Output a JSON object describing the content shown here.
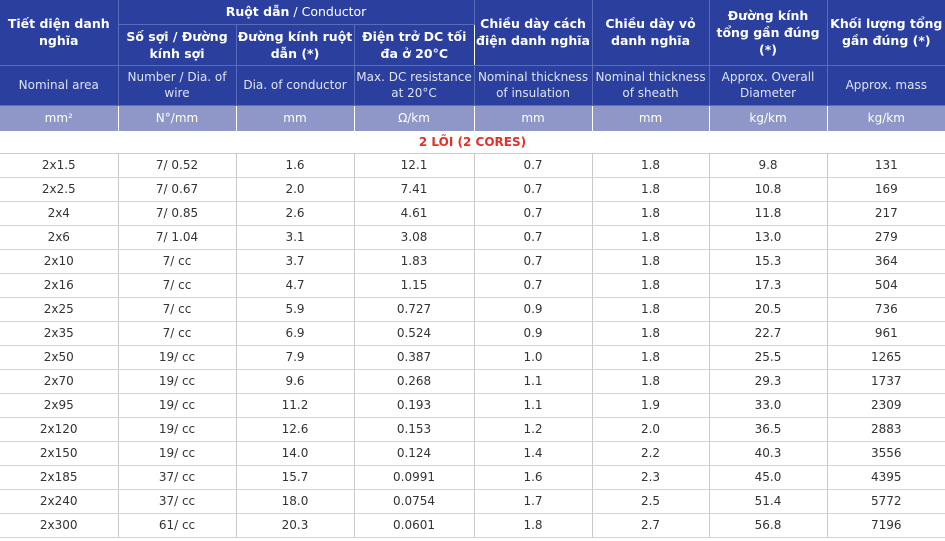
{
  "header": {
    "col1_vi": "Tiết diện danh nghĩa",
    "col1_en": "Nominal area",
    "conductor_group_vi": "Ruột dẫn",
    "conductor_group_sep": " / ",
    "conductor_group_en": "Conductor",
    "col2_vi": "Số sợi / Đường kính sợi",
    "col2_en": "Number / Dia. of wire",
    "col3_vi": "Đường kính ruột dẫn (*)",
    "col3_en": "Dia. of conductor",
    "col4_vi": "Điện trở DC tối đa ở 20°C",
    "col4_en": "Max. DC resistance at 20°C",
    "col5_vi": "Chiều dày cách điện danh nghĩa",
    "col5_en": "Nominal thickness of insulation",
    "col6_vi": "Chiều dày vỏ danh nghĩa",
    "col6_en": "Nominal thickness of sheath",
    "col7_vi": "Đường kính tổng gần đúng (*)",
    "col7_en": "Approx. Overall Diameter",
    "col8_vi": "Khối lượng tổng gần đúng (*)",
    "col8_en": "Approx. mass"
  },
  "units": [
    "mm²",
    "N°/mm",
    "mm",
    "Ω/km",
    "mm",
    "mm",
    "kg/km",
    "kg/km"
  ],
  "section_title": "2 LÕI (2 CORES)",
  "rows": [
    [
      "2x1.5",
      "7/ 0.52",
      "1.6",
      "12.1",
      "0.7",
      "1.8",
      "9.8",
      "131"
    ],
    [
      "2x2.5",
      "7/ 0.67",
      "2.0",
      "7.41",
      "0.7",
      "1.8",
      "10.8",
      "169"
    ],
    [
      "2x4",
      "7/ 0.85",
      "2.6",
      "4.61",
      "0.7",
      "1.8",
      "11.8",
      "217"
    ],
    [
      "2x6",
      "7/ 1.04",
      "3.1",
      "3.08",
      "0.7",
      "1.8",
      "13.0",
      "279"
    ],
    [
      "2x10",
      "7/ cc",
      "3.7",
      "1.83",
      "0.7",
      "1.8",
      "15.3",
      "364"
    ],
    [
      "2x16",
      "7/ cc",
      "4.7",
      "1.15",
      "0.7",
      "1.8",
      "17.3",
      "504"
    ],
    [
      "2x25",
      "7/ cc",
      "5.9",
      "0.727",
      "0.9",
      "1.8",
      "20.5",
      "736"
    ],
    [
      "2x35",
      "7/ cc",
      "6.9",
      "0.524",
      "0.9",
      "1.8",
      "22.7",
      "961"
    ],
    [
      "2x50",
      "19/ cc",
      "7.9",
      "0.387",
      "1.0",
      "1.8",
      "25.5",
      "1265"
    ],
    [
      "2x70",
      "19/ cc",
      "9.6",
      "0.268",
      "1.1",
      "1.8",
      "29.3",
      "1737"
    ],
    [
      "2x95",
      "19/ cc",
      "11.2",
      "0.193",
      "1.1",
      "1.9",
      "33.0",
      "2309"
    ],
    [
      "2x120",
      "19/ cc",
      "12.6",
      "0.153",
      "1.2",
      "2.0",
      "36.5",
      "2883"
    ],
    [
      "2x150",
      "19/ cc",
      "14.0",
      "0.124",
      "1.4",
      "2.2",
      "40.3",
      "3556"
    ],
    [
      "2x185",
      "37/ cc",
      "15.7",
      "0.0991",
      "1.6",
      "2.3",
      "45.0",
      "4395"
    ],
    [
      "2x240",
      "37/ cc",
      "18.0",
      "0.0754",
      "1.7",
      "2.5",
      "51.4",
      "5772"
    ],
    [
      "2x300",
      "61/ cc",
      "20.3",
      "0.0601",
      "1.8",
      "2.7",
      "56.8",
      "7196"
    ]
  ]
}
